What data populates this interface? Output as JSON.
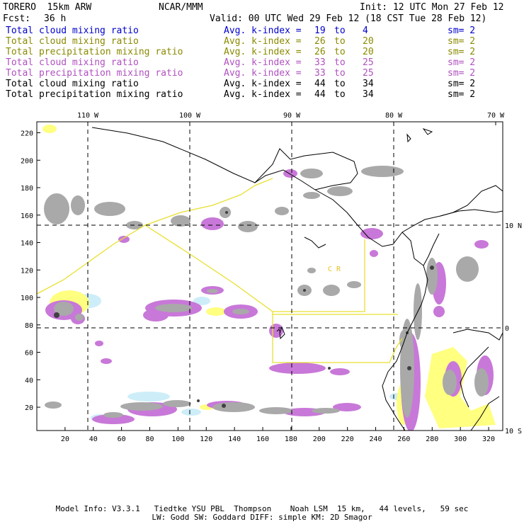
{
  "header": {
    "model": "TORERO  15km ARW",
    "center": "NCAR/MMM",
    "init": "Init: 12 UTC Mon 27 Feb 12",
    "fcst_label": "Fcst:",
    "fcst_value": "36 h",
    "valid": "Valid: 00 UTC Wed 29 Feb 12 (18 CST Tue 28 Feb 12)"
  },
  "legend": [
    {
      "field": "Total cloud mixing ratio",
      "kindex": "Avg. k-index =",
      "k1": "19",
      "to": "to",
      "k2": "4",
      "sm": "sm= 2",
      "color": "#0000cc"
    },
    {
      "field": "Total cloud mixing ratio",
      "kindex": "Avg. k-index =",
      "k1": "26",
      "to": "to",
      "k2": "20",
      "sm": "sm= 2",
      "color": "#8a8a00"
    },
    {
      "field": "Total precipitation mixing ratio",
      "kindex": "Avg. k-index =",
      "k1": "26",
      "to": "to",
      "k2": "20",
      "sm": "sm= 2",
      "color": "#8a8a00"
    },
    {
      "field": "Total cloud mixing ratio",
      "kindex": "Avg. k-index =",
      "k1": "33",
      "to": "to",
      "k2": "25",
      "sm": "sm= 2",
      "color": "#b050c0"
    },
    {
      "field": "Total precipitation mixing ratio",
      "kindex": "Avg. k-index =",
      "k1": "33",
      "to": "to",
      "k2": "25",
      "sm": "sm= 2",
      "color": "#b050c0"
    },
    {
      "field": "Total cloud mixing ratio",
      "kindex": "Avg. k-index =",
      "k1": "44",
      "to": "to",
      "k2": "34",
      "sm": "sm= 2",
      "color": "#000000"
    },
    {
      "field": "Total precipitation mixing ratio",
      "kindex": "Avg. k-index =",
      "k1": "44",
      "to": "to",
      "k2": "34",
      "sm": "sm= 2",
      "color": "#000000"
    }
  ],
  "map": {
    "lon_labels": [
      "110 W",
      "100 W",
      "90 W",
      "80 W",
      "70 W"
    ],
    "lat_labels": [
      "10 N",
      "0",
      "10 S"
    ],
    "x_ticks": [
      "20",
      "40",
      "60",
      "80",
      "100",
      "120",
      "140",
      "160",
      "180",
      "200",
      "220",
      "240",
      "260",
      "280",
      "300",
      "320"
    ],
    "y_ticks": [
      "20",
      "40",
      "60",
      "80",
      "100",
      "120",
      "140",
      "160",
      "180",
      "200",
      "220"
    ],
    "region_labels": [
      "C R"
    ],
    "colors": {
      "light_cloud": "#c8eef8",
      "gray": "#a8a8a8",
      "dark_gray": "#505050",
      "purple": "#c070d0",
      "yellow": "#ffff80",
      "boundary": "#e8e030"
    }
  },
  "footer": {
    "line1": "Model Info: V3.3.1   Tiedtke YSU PBL  Thompson    Noah LSM  15 km,   44 levels,   59 sec",
    "line2": "LW: Godd SW: Goddard DIFF: simple KM: 2D Smagor"
  }
}
